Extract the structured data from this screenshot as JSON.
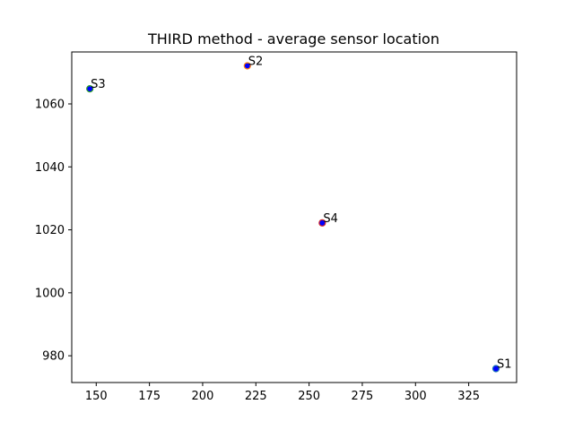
{
  "chart_data": {
    "type": "scatter",
    "title": "THIRD method - average sensor location",
    "xlabel": "",
    "ylabel": "",
    "xlim": [
      138.5,
      347.5
    ],
    "ylim": [
      971.5,
      1076.5
    ],
    "xticks": [
      150,
      175,
      200,
      225,
      250,
      275,
      300,
      325
    ],
    "yticks": [
      980,
      1000,
      1020,
      1040,
      1060
    ],
    "grid": false,
    "points": [
      {
        "label": "S1",
        "x": 337.8,
        "y": 975.9,
        "fill": "#0000ff",
        "edge": "#1f77b4"
      },
      {
        "label": "S2",
        "x": 221.0,
        "y": 1072.1,
        "fill": "#0000ff",
        "edge": "#ff7f0e"
      },
      {
        "label": "S3",
        "x": 147.0,
        "y": 1064.8,
        "fill": "#0000ff",
        "edge": "#2ca02c"
      },
      {
        "label": "S4",
        "x": 256.2,
        "y": 1022.2,
        "fill": "#0000ff",
        "edge": "#d62728"
      }
    ]
  }
}
